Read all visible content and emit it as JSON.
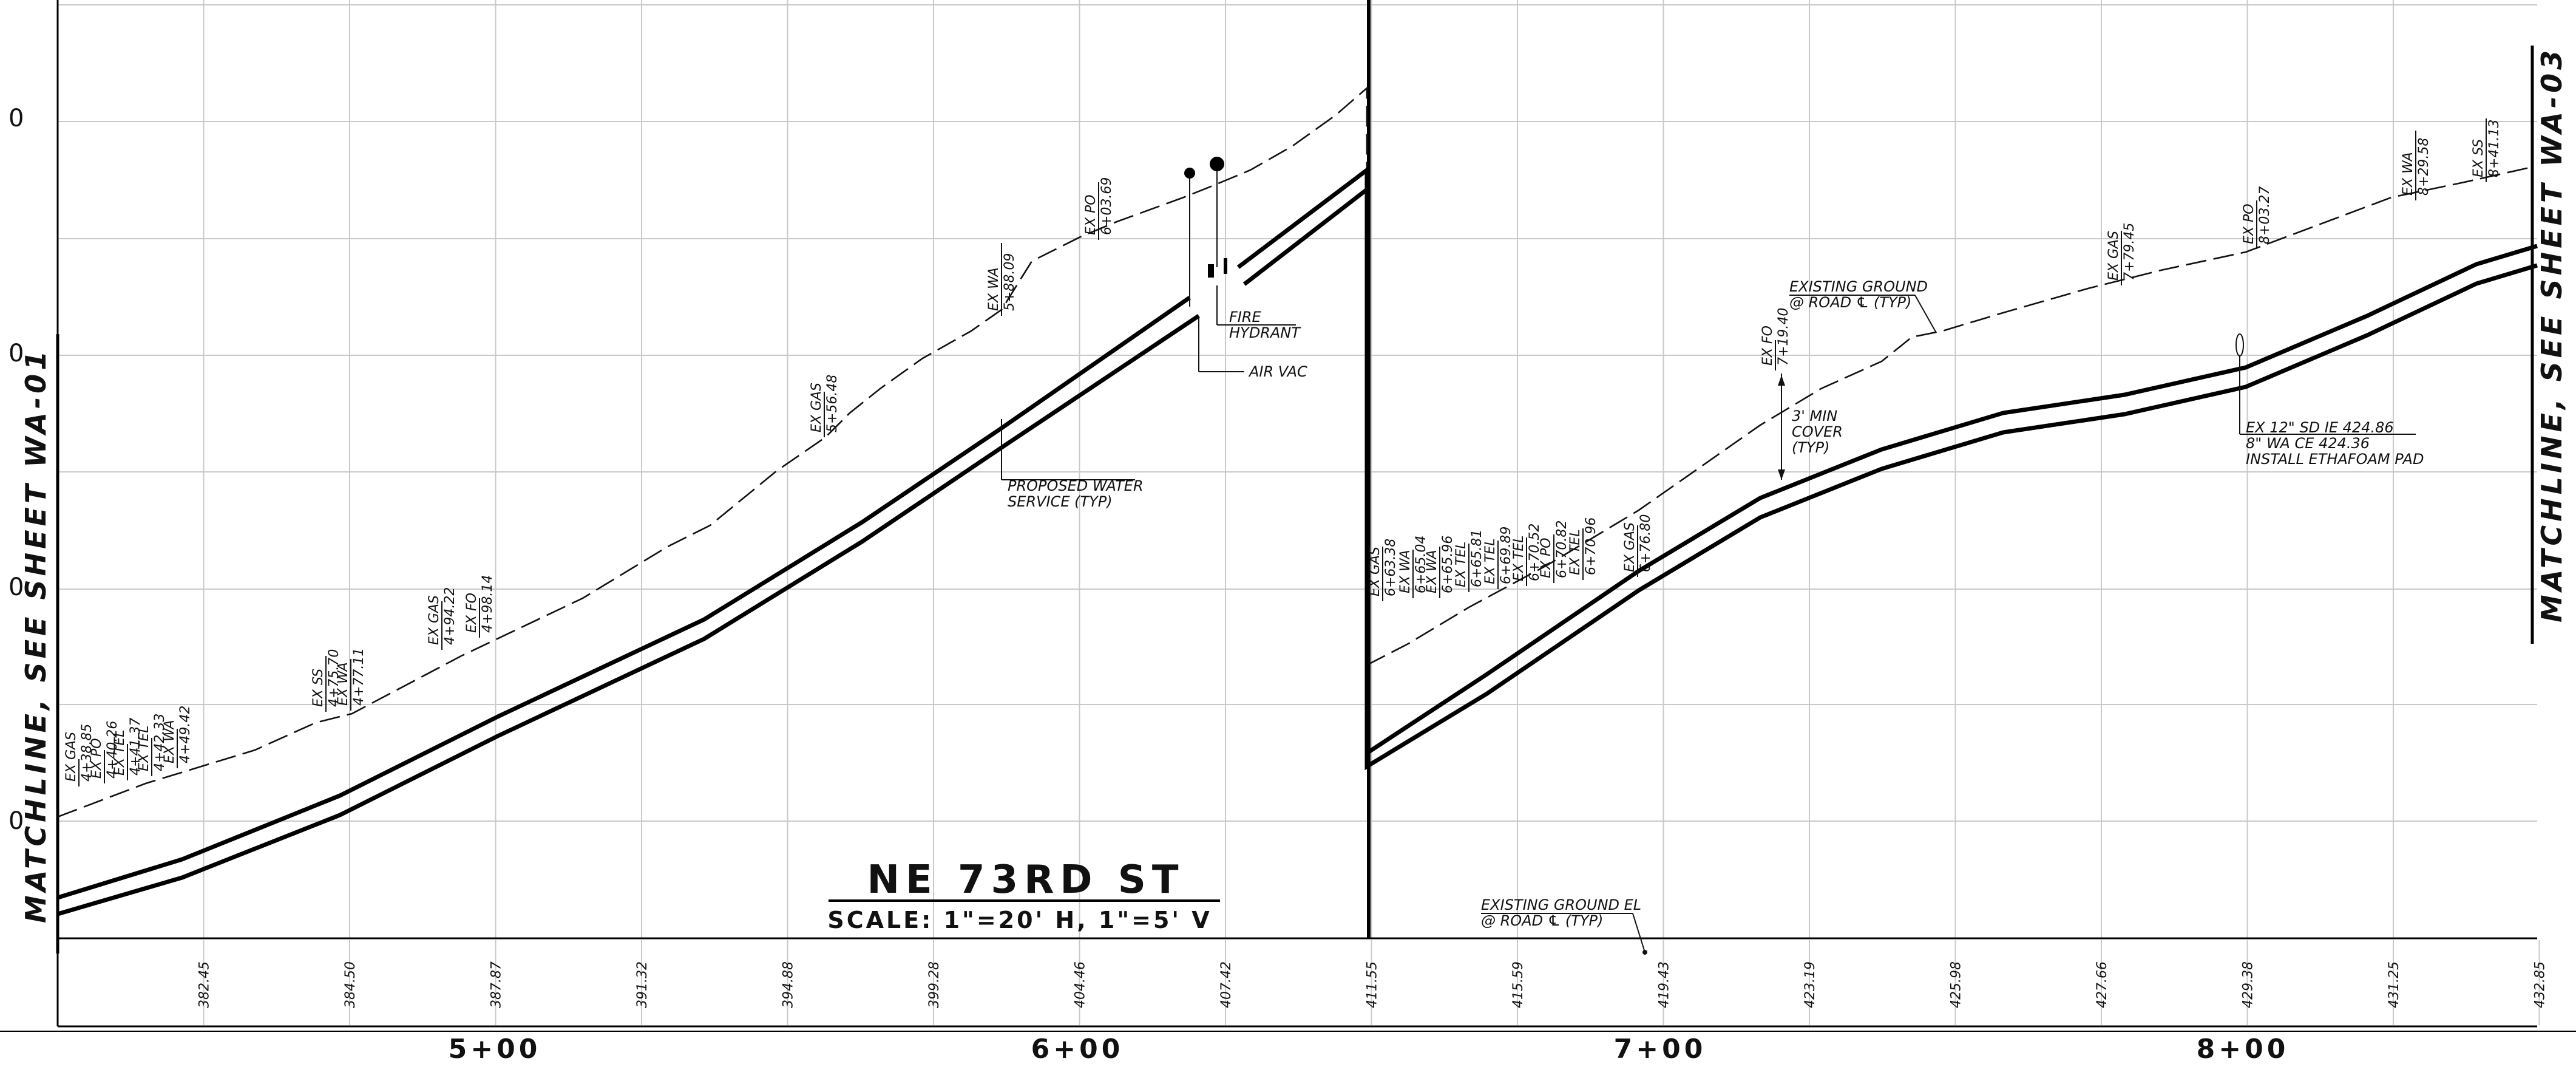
{
  "title": "NE 73RD ST",
  "scale": "SCALE: 1\"=20' H, 1\"=5' V",
  "matchline_left": "MATCHLINE, SEE SHEET WA-01",
  "matchline_right": "MATCHLINE, SEE SHEET WA-03",
  "stations": [
    "5+00",
    "6+00",
    "7+00",
    "8+00"
  ],
  "ground_elevations": [
    "382.45",
    "384.50",
    "387.87",
    "391.32",
    "394.88",
    "399.28",
    "404.46",
    "407.42",
    "411.55",
    "415.59",
    "419.43",
    "423.19",
    "425.98",
    "427.66",
    "429.38",
    "431.25",
    "432.85"
  ],
  "utility_labels": [
    {
      "type": "EX GAS",
      "station": "4+38.85"
    },
    {
      "type": "EX PO",
      "station": "4+40.26"
    },
    {
      "type": "EX TEL",
      "station": "4+41.37"
    },
    {
      "type": "EX TEL",
      "station": "4+42.33"
    },
    {
      "type": "EX WA",
      "station": "4+49.42"
    },
    {
      "type": "EX SS",
      "station": "4+75.70"
    },
    {
      "type": "EX WA",
      "station": "4+77.11"
    },
    {
      "type": "EX GAS",
      "station": "4+94.22"
    },
    {
      "type": "EX FO",
      "station": "4+98.14"
    },
    {
      "type": "EX GAS",
      "station": "5+56.48"
    },
    {
      "type": "EX WA",
      "station": "5+88.09"
    },
    {
      "type": "EX PO",
      "station": "6+03.69"
    },
    {
      "type": "EX GAS",
      "station": "6+63.38"
    },
    {
      "type": "EX WA",
      "station": "6+65.04"
    },
    {
      "type": "EX WA",
      "station": "6+65.96"
    },
    {
      "type": "EX TEL",
      "station": "6+65.81"
    },
    {
      "type": "EX TEL",
      "station": "6+69.89"
    },
    {
      "type": "EX TEL",
      "station": "6+70.52"
    },
    {
      "type": "EX PO",
      "station": "6+70.82"
    },
    {
      "type": "EX TEL",
      "station": "6+70.96"
    },
    {
      "type": "EX GAS",
      "station": "6+76.80"
    },
    {
      "type": "EX FO",
      "station": "7+19.40"
    },
    {
      "type": "EX GAS",
      "station": "7+79.45"
    },
    {
      "type": "EX PO",
      "station": "8+03.27"
    },
    {
      "type": "EX WA",
      "station": "8+29.58"
    },
    {
      "type": "EX SS",
      "station": "8+41.13"
    }
  ],
  "callouts": {
    "proposed_water": [
      "PROPOSED WATER",
      "SERVICE (TYP)"
    ],
    "fire_hydrant": [
      "FIRE",
      "HYDRANT"
    ],
    "air_vac": "AIR VAC",
    "existing_ground_typ": [
      "EXISTING GROUND",
      "@ ROAD ℄ (TYP)"
    ],
    "min_cover": [
      "3' MIN",
      "COVER",
      "(TYP)"
    ],
    "sd_crossing": [
      "EX 12\" SD IE 424.86",
      "8\" WA CE 424.36",
      "INSTALL ETHAFOAM PAD"
    ],
    "existing_ground_el": [
      "EXISTING GROUND EL",
      "@ ROAD ℄ (TYP)"
    ]
  },
  "left_axis_ticks": [
    "0",
    "0",
    "0",
    "0"
  ]
}
